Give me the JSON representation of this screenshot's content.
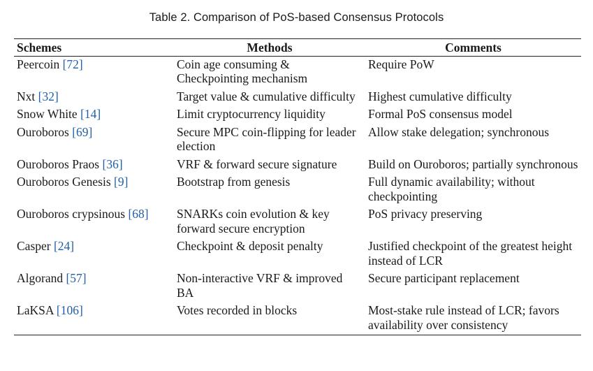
{
  "caption": "Table 2.  Comparison of PoS-based Consensus Protocols",
  "headers": {
    "schemes": "Schemes",
    "methods": "Methods",
    "comments": "Comments"
  },
  "rows": [
    {
      "scheme": "Peercoin",
      "ref": "[72]",
      "method": "Coin age consuming & Checkpointing mechanism",
      "comment": "Require PoW"
    },
    {
      "scheme": "Nxt",
      "ref": "[32]",
      "method": "Target value & cumulative difficulty",
      "comment": "Highest cumulative difficulty"
    },
    {
      "scheme": "Snow White",
      "ref": "[14]",
      "method": "Limit cryptocurrency liquidity",
      "comment": "Formal PoS consensus model"
    },
    {
      "scheme": "Ouroboros",
      "ref": "[69]",
      "method": "Secure MPC coin-flipping for leader election",
      "comment": "Allow stake delegation; synchronous"
    },
    {
      "scheme": "Ouroboros Praos",
      "ref": "[36]",
      "method": "VRF & forward secure signature",
      "comment": "Build on Ouroboros; partially synchronous"
    },
    {
      "scheme": "Ouroboros Genesis",
      "ref": "[9]",
      "method": "Bootstrap from genesis",
      "comment": "Full dynamic availability; without checkpointing"
    },
    {
      "scheme": "Ouroboros crypsinous",
      "ref": "[68]",
      "method": "SNARKs coin evolution & key forward secure encryption",
      "comment": "PoS privacy preserving"
    },
    {
      "scheme": "Casper",
      "ref": "[24]",
      "method": "Checkpoint & deposit penalty",
      "comment": "Justified checkpoint of the greatest height instead of LCR"
    },
    {
      "scheme": "Algorand",
      "ref": "[57]",
      "method": "Non-interactive VRF & improved BA",
      "comment": "Secure participant replacement"
    },
    {
      "scheme": "LaKSA",
      "ref": "[106]",
      "method": "Votes recorded in blocks",
      "comment": "Most-stake rule instead of LCR; favors availability over consistency"
    }
  ]
}
